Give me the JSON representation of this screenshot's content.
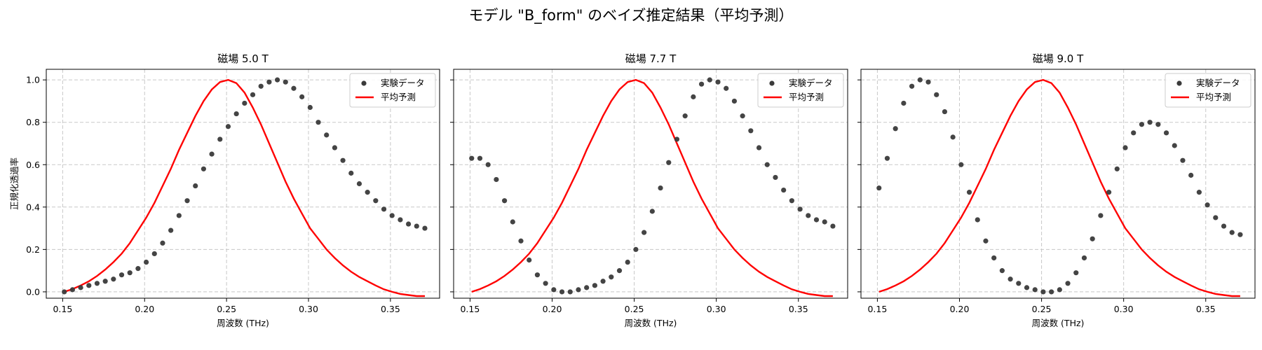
{
  "title": "モデル \"B_form\" のベイズ推定結果（平均予測）",
  "legend": {
    "data_label": "実験データ",
    "pred_label": "平均予測",
    "placement": "upper right"
  },
  "colors": {
    "data_points": "#3a3a3a",
    "prediction_line": "#ff0000",
    "grid": "#c8c8c8"
  },
  "chart_data": [
    {
      "type": "scatter+line",
      "title": "磁場 5.0 T",
      "xlabel": "周波数 (THz)",
      "ylabel": "正規化透過率",
      "xlim": [
        0.14,
        0.38
      ],
      "ylim": [
        -0.03,
        1.05
      ],
      "xticks": [
        0.15,
        0.2,
        0.25,
        0.3,
        0.35
      ],
      "xtick_labels": [
        "0.15",
        "0.20",
        "0.25",
        "0.30",
        "0.35"
      ],
      "yticks": [
        0.0,
        0.2,
        0.4,
        0.6,
        0.8,
        1.0
      ],
      "ytick_labels": [
        "0.0",
        "0.2",
        "0.4",
        "0.6",
        "0.8",
        "1.0"
      ],
      "grid": true,
      "data_x": [
        0.151,
        0.156,
        0.161,
        0.166,
        0.171,
        0.176,
        0.181,
        0.186,
        0.191,
        0.196,
        0.201,
        0.206,
        0.211,
        0.216,
        0.221,
        0.226,
        0.231,
        0.236,
        0.241,
        0.246,
        0.251,
        0.256,
        0.261,
        0.266,
        0.271,
        0.276,
        0.281,
        0.286,
        0.291,
        0.296,
        0.301,
        0.306,
        0.311,
        0.316,
        0.321,
        0.326,
        0.331,
        0.336,
        0.341,
        0.346,
        0.351,
        0.356,
        0.361,
        0.366,
        0.371
      ],
      "data_y": [
        0.0,
        0.01,
        0.02,
        0.03,
        0.04,
        0.05,
        0.06,
        0.08,
        0.09,
        0.11,
        0.14,
        0.18,
        0.23,
        0.29,
        0.36,
        0.43,
        0.5,
        0.58,
        0.65,
        0.72,
        0.78,
        0.84,
        0.89,
        0.93,
        0.97,
        0.99,
        1.0,
        0.99,
        0.96,
        0.92,
        0.87,
        0.8,
        0.74,
        0.68,
        0.62,
        0.56,
        0.51,
        0.47,
        0.43,
        0.39,
        0.36,
        0.34,
        0.32,
        0.31,
        0.3
      ],
      "pred_x": [
        0.151,
        0.156,
        0.161,
        0.166,
        0.171,
        0.176,
        0.181,
        0.186,
        0.191,
        0.196,
        0.201,
        0.206,
        0.211,
        0.216,
        0.221,
        0.226,
        0.231,
        0.236,
        0.241,
        0.246,
        0.251,
        0.256,
        0.261,
        0.266,
        0.271,
        0.276,
        0.281,
        0.286,
        0.291,
        0.296,
        0.301,
        0.306,
        0.311,
        0.316,
        0.321,
        0.326,
        0.331,
        0.336,
        0.341,
        0.346,
        0.351,
        0.356,
        0.361,
        0.366,
        0.371
      ],
      "pred_y": [
        0.0,
        0.013,
        0.03,
        0.05,
        0.075,
        0.105,
        0.14,
        0.18,
        0.23,
        0.29,
        0.35,
        0.42,
        0.5,
        0.58,
        0.67,
        0.75,
        0.83,
        0.9,
        0.955,
        0.99,
        1.0,
        0.985,
        0.94,
        0.87,
        0.79,
        0.7,
        0.61,
        0.52,
        0.44,
        0.37,
        0.3,
        0.25,
        0.2,
        0.16,
        0.125,
        0.095,
        0.07,
        0.05,
        0.03,
        0.012,
        0.0,
        -0.01,
        -0.015,
        -0.02,
        -0.02
      ]
    },
    {
      "type": "scatter+line",
      "title": "磁場 7.7 T",
      "xlabel": "周波数 (THz)",
      "ylabel": "",
      "xlim": [
        0.14,
        0.38
      ],
      "ylim": [
        -0.03,
        1.05
      ],
      "xticks": [
        0.15,
        0.2,
        0.25,
        0.3,
        0.35
      ],
      "xtick_labels": [
        "0.15",
        "0.20",
        "0.25",
        "0.30",
        "0.35"
      ],
      "yticks": [
        0.0,
        0.2,
        0.4,
        0.6,
        0.8,
        1.0
      ],
      "ytick_labels": [],
      "grid": true,
      "data_x": [
        0.151,
        0.156,
        0.161,
        0.166,
        0.171,
        0.176,
        0.181,
        0.186,
        0.191,
        0.196,
        0.201,
        0.206,
        0.211,
        0.216,
        0.221,
        0.226,
        0.231,
        0.236,
        0.241,
        0.246,
        0.251,
        0.256,
        0.261,
        0.266,
        0.271,
        0.276,
        0.281,
        0.286,
        0.291,
        0.296,
        0.301,
        0.306,
        0.311,
        0.316,
        0.321,
        0.326,
        0.331,
        0.336,
        0.341,
        0.346,
        0.351,
        0.356,
        0.361,
        0.366,
        0.371
      ],
      "data_y": [
        0.63,
        0.63,
        0.6,
        0.53,
        0.43,
        0.33,
        0.24,
        0.15,
        0.08,
        0.04,
        0.01,
        0.0,
        0.0,
        0.01,
        0.02,
        0.03,
        0.05,
        0.07,
        0.1,
        0.14,
        0.2,
        0.28,
        0.38,
        0.49,
        0.61,
        0.72,
        0.83,
        0.92,
        0.98,
        1.0,
        0.99,
        0.96,
        0.9,
        0.83,
        0.76,
        0.68,
        0.6,
        0.54,
        0.48,
        0.43,
        0.39,
        0.36,
        0.34,
        0.33,
        0.31
      ],
      "pred_x": [
        0.151,
        0.156,
        0.161,
        0.166,
        0.171,
        0.176,
        0.181,
        0.186,
        0.191,
        0.196,
        0.201,
        0.206,
        0.211,
        0.216,
        0.221,
        0.226,
        0.231,
        0.236,
        0.241,
        0.246,
        0.251,
        0.256,
        0.261,
        0.266,
        0.271,
        0.276,
        0.281,
        0.286,
        0.291,
        0.296,
        0.301,
        0.306,
        0.311,
        0.316,
        0.321,
        0.326,
        0.331,
        0.336,
        0.341,
        0.346,
        0.351,
        0.356,
        0.361,
        0.366,
        0.371
      ],
      "pred_y": [
        0.0,
        0.013,
        0.03,
        0.05,
        0.075,
        0.105,
        0.14,
        0.18,
        0.23,
        0.29,
        0.35,
        0.42,
        0.5,
        0.58,
        0.67,
        0.75,
        0.83,
        0.9,
        0.955,
        0.99,
        1.0,
        0.985,
        0.94,
        0.87,
        0.79,
        0.7,
        0.61,
        0.52,
        0.44,
        0.37,
        0.3,
        0.25,
        0.2,
        0.16,
        0.125,
        0.095,
        0.07,
        0.05,
        0.03,
        0.012,
        0.0,
        -0.01,
        -0.015,
        -0.02,
        -0.02
      ]
    },
    {
      "type": "scatter+line",
      "title": "磁場 9.0 T",
      "xlabel": "周波数 (THz)",
      "ylabel": "",
      "xlim": [
        0.14,
        0.38
      ],
      "ylim": [
        -0.03,
        1.05
      ],
      "xticks": [
        0.15,
        0.2,
        0.25,
        0.3,
        0.35
      ],
      "xtick_labels": [
        "0.15",
        "0.20",
        "0.25",
        "0.30",
        "0.35"
      ],
      "yticks": [
        0.0,
        0.2,
        0.4,
        0.6,
        0.8,
        1.0
      ],
      "ytick_labels": [],
      "grid": true,
      "data_x": [
        0.151,
        0.156,
        0.161,
        0.166,
        0.171,
        0.176,
        0.181,
        0.186,
        0.191,
        0.196,
        0.201,
        0.206,
        0.211,
        0.216,
        0.221,
        0.226,
        0.231,
        0.236,
        0.241,
        0.246,
        0.251,
        0.256,
        0.261,
        0.266,
        0.271,
        0.276,
        0.281,
        0.286,
        0.291,
        0.296,
        0.301,
        0.306,
        0.311,
        0.316,
        0.321,
        0.326,
        0.331,
        0.336,
        0.341,
        0.346,
        0.351,
        0.356,
        0.361,
        0.366,
        0.371
      ],
      "data_y": [
        0.49,
        0.63,
        0.77,
        0.89,
        0.97,
        1.0,
        0.99,
        0.93,
        0.85,
        0.73,
        0.6,
        0.47,
        0.34,
        0.24,
        0.16,
        0.1,
        0.06,
        0.04,
        0.02,
        0.01,
        0.0,
        0.0,
        0.01,
        0.04,
        0.09,
        0.16,
        0.25,
        0.36,
        0.47,
        0.58,
        0.68,
        0.75,
        0.79,
        0.8,
        0.79,
        0.75,
        0.69,
        0.62,
        0.55,
        0.47,
        0.41,
        0.35,
        0.31,
        0.28,
        0.27
      ],
      "pred_x": [
        0.151,
        0.156,
        0.161,
        0.166,
        0.171,
        0.176,
        0.181,
        0.186,
        0.191,
        0.196,
        0.201,
        0.206,
        0.211,
        0.216,
        0.221,
        0.226,
        0.231,
        0.236,
        0.241,
        0.246,
        0.251,
        0.256,
        0.261,
        0.266,
        0.271,
        0.276,
        0.281,
        0.286,
        0.291,
        0.296,
        0.301,
        0.306,
        0.311,
        0.316,
        0.321,
        0.326,
        0.331,
        0.336,
        0.341,
        0.346,
        0.351,
        0.356,
        0.361,
        0.366,
        0.371
      ],
      "pred_y": [
        0.0,
        0.013,
        0.03,
        0.05,
        0.075,
        0.105,
        0.14,
        0.18,
        0.23,
        0.29,
        0.35,
        0.42,
        0.5,
        0.58,
        0.67,
        0.75,
        0.83,
        0.9,
        0.955,
        0.99,
        1.0,
        0.985,
        0.94,
        0.87,
        0.79,
        0.7,
        0.61,
        0.52,
        0.44,
        0.37,
        0.3,
        0.25,
        0.2,
        0.16,
        0.125,
        0.095,
        0.07,
        0.05,
        0.03,
        0.012,
        0.0,
        -0.01,
        -0.015,
        -0.02,
        -0.02
      ]
    }
  ]
}
